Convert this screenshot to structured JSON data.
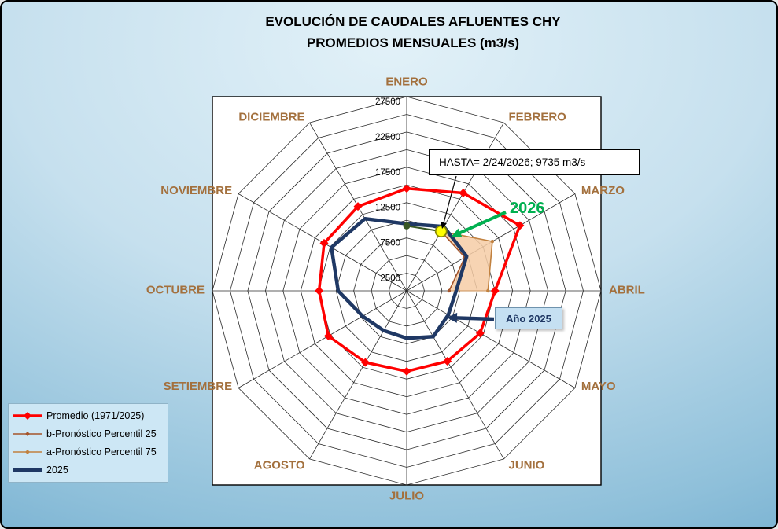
{
  "title": {
    "line1": "EVOLUCIÓN DE CAUDALES AFLUENTES CHY",
    "line2": "PROMEDIOS MENSUALES (m3/s)"
  },
  "chart_data": {
    "type": "radar",
    "categories": [
      "ENERO",
      "FEBRERO",
      "MARZO",
      "ABRIL",
      "MAYO",
      "JUNIO",
      "JULIO",
      "AGOSTO",
      "SETIEMBRE",
      "OCTUBRE",
      "NOVIEMBRE",
      "DICIEMBRE"
    ],
    "axis": {
      "min": 0,
      "max": 27500,
      "ring_step": 2500,
      "tick_values": [
        2500,
        7500,
        12500,
        17500,
        22500,
        27500
      ],
      "tick_labels": [
        "2500",
        "7500",
        "12500",
        "17500",
        "22500",
        "27500"
      ]
    },
    "series": [
      {
        "name": "Promedio (1971/2025)",
        "color": "#ff0000",
        "width": 3.5,
        "marker": "diamond",
        "month_start": 0,
        "values": [
          14500,
          16000,
          18500,
          12500,
          12000,
          11500,
          11400,
          11700,
          12800,
          12400,
          13500,
          13800
        ]
      },
      {
        "name": "b-Pronóstico Percentil 25",
        "color": "#a5552b",
        "width": 1.6,
        "marker": "dot",
        "month_start": 1,
        "values": [
          9735,
          9500,
          6000
        ]
      },
      {
        "name": "a-Pronóstico Percentil 75",
        "color": "#c1813f",
        "width": 1.6,
        "marker": "dot",
        "month_start": 1,
        "values": [
          9735,
          14000,
          11500
        ]
      },
      {
        "name": "2025",
        "color": "#1f3864",
        "width": 4.5,
        "marker": "none",
        "month_start": 0,
        "values": [
          9500,
          10500,
          9800,
          7000,
          6800,
          7500,
          6700,
          6500,
          7200,
          9700,
          12300,
          11800
        ]
      },
      {
        "name": "2026",
        "color": "#375623",
        "width": 2,
        "marker": "endpoints",
        "month_start": 0,
        "values": [
          9200,
          9735
        ]
      }
    ],
    "band": {
      "fill": "#f6cda6",
      "opacity": 0.85,
      "stroke": "#c99059",
      "upper_series": 2,
      "lower_series": 1
    },
    "layout": {
      "month_label_color": "#a3703d",
      "grid_color": "#2a2a2a",
      "plot_bg": "#ffffff"
    }
  },
  "annotations": {
    "hasta": {
      "text": "HASTA= 2/24/2026; 9735 m3/s"
    },
    "year2026": {
      "text": "2026",
      "color": "#00b050"
    },
    "ano2025": {
      "text": "Año 2025",
      "color": "#1f3864",
      "bg": "#c5e0f2"
    },
    "last_point": {
      "month": "FEBRERO",
      "value": 9735,
      "marker_fill": "#ffff00",
      "marker_stroke": "#8a8a00"
    }
  },
  "legend": {
    "items": [
      {
        "series_index": 0
      },
      {
        "series_index": 1
      },
      {
        "series_index": 2
      },
      {
        "series_index": 3
      }
    ]
  }
}
